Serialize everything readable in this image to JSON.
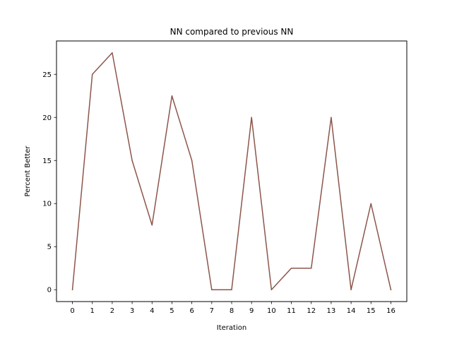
{
  "chart_data": {
    "type": "line",
    "title": "NN compared to previous NN",
    "xlabel": "Iteration",
    "ylabel": "Percent Better",
    "x": [
      0,
      1,
      2,
      3,
      4,
      5,
      6,
      7,
      8,
      9,
      10,
      11,
      12,
      13,
      14,
      15,
      16
    ],
    "series": [
      {
        "values": [
          0,
          25,
          27.5,
          15,
          7.5,
          22.5,
          15,
          0,
          0,
          20,
          0,
          2.5,
          2.5,
          20,
          0,
          10,
          0
        ],
        "color": "#8c564b"
      }
    ],
    "xlim": [
      -0.8,
      16.8
    ],
    "ylim": [
      -1.375,
      28.875
    ],
    "xticks": [
      "0",
      "1",
      "2",
      "3",
      "4",
      "5",
      "6",
      "7",
      "8",
      "9",
      "10",
      "11",
      "12",
      "13",
      "14",
      "15",
      "16"
    ],
    "yticks": [
      "0",
      "5",
      "10",
      "15",
      "20",
      "25"
    ],
    "grid": false,
    "legend": "none"
  }
}
